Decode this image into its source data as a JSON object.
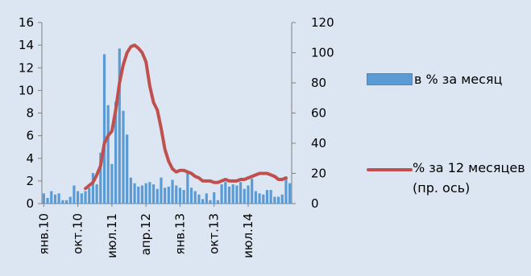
{
  "chart_data": {
    "type": "bar+line",
    "title": "",
    "x_tick_labels": [
      "янв.10",
      "окт.10",
      "июл.11",
      "апр.12",
      "янв.13",
      "окт.13",
      "июл.14"
    ],
    "y_left": {
      "min": 0,
      "max": 16,
      "ticks": [
        "0",
        "2",
        "4",
        "6",
        "8",
        "10",
        "12",
        "14",
        "16"
      ]
    },
    "y_right": {
      "min": 0,
      "max": 120,
      "ticks": [
        "0",
        "20",
        "40",
        "60",
        "80",
        "100",
        "120"
      ]
    },
    "series": [
      {
        "name": "в % за месяц",
        "type": "bar",
        "axis": "left",
        "color": "#5b9bd5",
        "values": [
          0.9,
          0.5,
          1.1,
          0.8,
          0.9,
          0.3,
          0.3,
          0.6,
          1.6,
          1.1,
          0.9,
          1.1,
          1.4,
          2.7,
          1.7,
          4.5,
          13.2,
          8.7,
          3.5,
          9.0,
          13.7,
          8.2,
          6.1,
          2.3,
          1.8,
          1.5,
          1.6,
          1.8,
          1.9,
          1.7,
          1.3,
          2.3,
          1.4,
          1.5,
          2.1,
          1.6,
          1.4,
          1.2,
          2.8,
          1.4,
          1.1,
          0.8,
          0.4,
          0.9,
          0.3,
          1.0,
          0.3,
          1.7,
          1.9,
          1.5,
          1.7,
          1.6,
          1.9,
          1.3,
          1.6,
          2.2,
          1.1,
          0.9,
          0.8,
          1.2,
          1.2,
          0.6,
          0.6,
          0.8,
          2.2,
          1.8
        ]
      },
      {
        "name": "% за 12 месяцев (пр. ось)",
        "type": "line",
        "axis": "right",
        "color": "#c0504d",
        "start_index": 11,
        "values": [
          10,
          12,
          14,
          19,
          25,
          40,
          45,
          48,
          62,
          80,
          92,
          100,
          104,
          105,
          103,
          100,
          94,
          78,
          67,
          62,
          50,
          36,
          28,
          23,
          21,
          22,
          22,
          21,
          20,
          18,
          17,
          15,
          15,
          15,
          14,
          14,
          15,
          16,
          15,
          15,
          15,
          16,
          16,
          17,
          18,
          19,
          20,
          20,
          20,
          19,
          18,
          16,
          16,
          17
        ]
      }
    ],
    "legend_position": "right"
  },
  "legend": {
    "bar_label": "в % за месяц",
    "line_label": "% за 12 месяцев (пр. ось)"
  }
}
